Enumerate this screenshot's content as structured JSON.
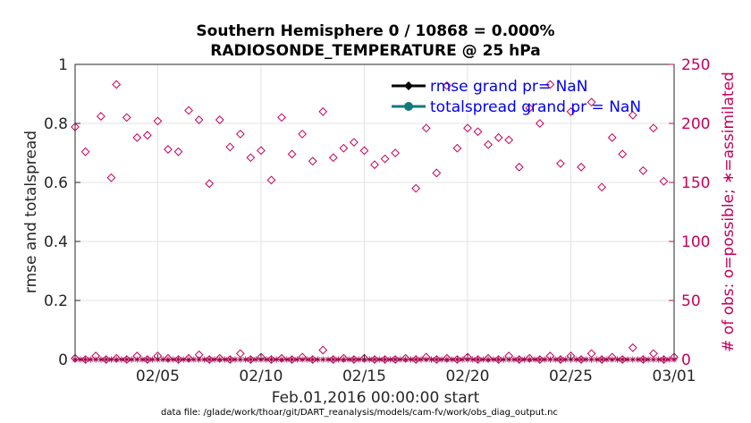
{
  "chart_data": {
    "type": "scatter",
    "title": [
      "Southern Hemisphere 0 / 10868 = 0.000%",
      "RADIOSONDE_TEMPERATURE @ 25 hPa"
    ],
    "xlabel": "Feb.01,2016 00:00:00 start",
    "ylabel_left": "rmse and totalspread",
    "ylabel_right": "# of obs: o=possible; ∗=assimilated",
    "footnote": "data file: /glade/work/thoar/git/DART_reanalysis/models/cam-fv/work/obs_diag_output.nc",
    "x_ticks": [
      "02/05",
      "02/10",
      "02/15",
      "02/20",
      "02/25",
      "03/01"
    ],
    "x_tick_days": [
      5,
      10,
      15,
      20,
      25,
      30
    ],
    "xlim_days": [
      1,
      30
    ],
    "ylim_left": [
      0,
      1
    ],
    "y_ticks_left": [
      "0",
      "0.2",
      "0.4",
      "0.6",
      "0.8",
      "1"
    ],
    "ylim_right": [
      0,
      250
    ],
    "y_ticks_right": [
      "0",
      "50",
      "100",
      "150",
      "200",
      "250"
    ],
    "grid": true,
    "legend_position": "top-right",
    "legend": [
      {
        "label": "rmse grand pr= NaN",
        "color": "#000000",
        "marker": "diamond"
      },
      {
        "label": "totalspread grand pr = NaN",
        "color": "#117a7a",
        "marker": "circle"
      }
    ],
    "possible_color": "#c8005a",
    "possible_high": [
      [
        1.0,
        197
      ],
      [
        1.5,
        176
      ],
      [
        2.25,
        206
      ],
      [
        2.75,
        154
      ],
      [
        3.0,
        233
      ],
      [
        3.5,
        205
      ],
      [
        4.0,
        188
      ],
      [
        4.5,
        190
      ],
      [
        5.0,
        202
      ],
      [
        5.5,
        178
      ],
      [
        6.0,
        176
      ],
      [
        6.5,
        211
      ],
      [
        7.0,
        203
      ],
      [
        7.5,
        149
      ],
      [
        8.0,
        203
      ],
      [
        8.5,
        180
      ],
      [
        9.0,
        191
      ],
      [
        9.5,
        171
      ],
      [
        10.0,
        177
      ],
      [
        10.5,
        152
      ],
      [
        11.0,
        205
      ],
      [
        11.5,
        174
      ],
      [
        12.0,
        191
      ],
      [
        12.5,
        168
      ],
      [
        13.0,
        210
      ],
      [
        13.5,
        171
      ],
      [
        14.0,
        179
      ],
      [
        14.5,
        184
      ],
      [
        15.0,
        177
      ],
      [
        15.5,
        165
      ],
      [
        16.0,
        170
      ],
      [
        16.5,
        175
      ],
      [
        17.5,
        145
      ],
      [
        18.0,
        196
      ],
      [
        18.5,
        158
      ],
      [
        19.0,
        232
      ],
      [
        19.5,
        179
      ],
      [
        20.0,
        196
      ],
      [
        20.5,
        193
      ],
      [
        21.0,
        182
      ],
      [
        21.5,
        188
      ],
      [
        22.0,
        186
      ],
      [
        22.5,
        163
      ],
      [
        23.0,
        213
      ],
      [
        23.5,
        200
      ],
      [
        24.0,
        233
      ],
      [
        24.5,
        166
      ],
      [
        25.0,
        210
      ],
      [
        25.5,
        163
      ],
      [
        26.0,
        218
      ],
      [
        26.5,
        146
      ],
      [
        27.0,
        188
      ],
      [
        27.5,
        174
      ],
      [
        28.0,
        207
      ],
      [
        28.5,
        160
      ],
      [
        29.0,
        196
      ],
      [
        29.5,
        151
      ]
    ],
    "possible_low": [
      [
        1.0,
        1
      ],
      [
        1.5,
        0
      ],
      [
        2.0,
        3
      ],
      [
        2.5,
        0
      ],
      [
        3.0,
        1
      ],
      [
        3.5,
        0
      ],
      [
        4.0,
        3
      ],
      [
        4.5,
        0
      ],
      [
        5.0,
        3
      ],
      [
        5.5,
        1
      ],
      [
        6.0,
        0
      ],
      [
        6.5,
        1
      ],
      [
        7.0,
        4
      ],
      [
        7.5,
        0
      ],
      [
        8.0,
        1
      ],
      [
        8.5,
        0
      ],
      [
        9.0,
        5
      ],
      [
        9.5,
        0
      ],
      [
        10.0,
        2
      ],
      [
        10.5,
        0
      ],
      [
        11.0,
        1
      ],
      [
        11.5,
        0
      ],
      [
        12.0,
        2
      ],
      [
        12.5,
        0
      ],
      [
        13.0,
        8
      ],
      [
        13.5,
        0
      ],
      [
        14.0,
        1
      ],
      [
        14.5,
        0
      ],
      [
        15.0,
        1
      ],
      [
        15.5,
        0
      ],
      [
        16.0,
        0
      ],
      [
        16.5,
        0
      ],
      [
        17.0,
        1
      ],
      [
        17.5,
        0
      ],
      [
        18.0,
        2
      ],
      [
        18.5,
        0
      ],
      [
        19.0,
        1
      ],
      [
        19.5,
        0
      ],
      [
        20.0,
        2
      ],
      [
        20.5,
        0
      ],
      [
        21.0,
        1
      ],
      [
        21.5,
        0
      ],
      [
        22.0,
        3
      ],
      [
        22.5,
        0
      ],
      [
        23.0,
        1
      ],
      [
        23.5,
        0
      ],
      [
        24.0,
        3
      ],
      [
        24.5,
        0
      ],
      [
        25.0,
        3
      ],
      [
        25.5,
        0
      ],
      [
        26.0,
        5
      ],
      [
        26.5,
        0
      ],
      [
        27.0,
        2
      ],
      [
        27.5,
        0
      ],
      [
        28.0,
        10
      ],
      [
        28.5,
        0
      ],
      [
        29.0,
        5
      ],
      [
        29.5,
        0
      ],
      [
        30.0,
        2
      ]
    ],
    "assimilated": "0 at every time step"
  }
}
